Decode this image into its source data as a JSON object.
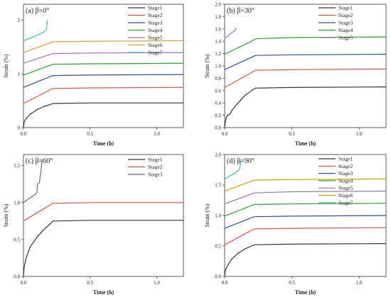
{
  "chart_data": [
    {
      "type": "line",
      "title": "(a) β=0°",
      "xlabel": "Time (h)",
      "ylabel": "Strain (%)",
      "xlim": [
        0,
        1.2
      ],
      "ylim": [
        0,
        2.3
      ],
      "xticks": [
        0,
        0.5,
        1
      ],
      "xtick_labels": [
        "0.0",
        "0.5",
        "1.0"
      ],
      "yticks": [
        0,
        1,
        2
      ],
      "ytick_labels": [
        "0",
        "1",
        "2"
      ],
      "legend_position": "top-right",
      "series": [
        {
          "name": "Stage1",
          "color": "#333333",
          "x": [
            0,
            0.005,
            0.02,
            0.05,
            0.1,
            0.15,
            0.2,
            0.22,
            0.5,
            1.2
          ],
          "y": [
            0,
            0.1,
            0.17,
            0.25,
            0.33,
            0.39,
            0.43,
            0.45,
            0.46,
            0.46
          ]
        },
        {
          "name": "Stage2",
          "color": "#e05545",
          "x": [
            0,
            0.22,
            0.5,
            1.2
          ],
          "y": [
            0.45,
            0.73,
            0.74,
            0.75
          ]
        },
        {
          "name": "Stage3",
          "color": "#2f4ea0",
          "x": [
            0,
            0.22,
            0.5,
            1.2
          ],
          "y": [
            0.75,
            0.97,
            0.98,
            0.99
          ]
        },
        {
          "name": "Stage4",
          "color": "#2aa52a",
          "x": [
            0,
            0.22,
            0.5,
            1.2
          ],
          "y": [
            0.98,
            1.18,
            1.19,
            1.2
          ]
        },
        {
          "name": "Stage5",
          "color": "#a070c0",
          "x": [
            0,
            0.22,
            0.5,
            1.2
          ],
          "y": [
            1.2,
            1.38,
            1.39,
            1.4
          ]
        },
        {
          "name": "Stage6",
          "color": "#e89a2c",
          "x": [
            0,
            0.22,
            0.5,
            1.2
          ],
          "y": [
            1.4,
            1.6,
            1.61,
            1.62
          ]
        },
        {
          "name": "Stage7",
          "color": "#3fb8b0",
          "x": [
            0,
            0.05,
            0.1,
            0.15,
            0.17,
            0.175,
            0.18
          ],
          "y": [
            1.62,
            1.67,
            1.72,
            1.78,
            1.82,
            1.9,
            2.0
          ]
        }
      ]
    },
    {
      "type": "line",
      "title": "(b) β=30°",
      "xlabel": "Time (h)",
      "ylabel": "Strain (%)",
      "xlim": [
        0,
        1.2
      ],
      "ylim": [
        0,
        2.0
      ],
      "xticks": [
        0,
        0.5,
        1
      ],
      "xtick_labels": [
        "0.0",
        "0.5",
        "1.0"
      ],
      "yticks": [
        0,
        0.2,
        0.4,
        0.6,
        0.8,
        1.0,
        1.2,
        1.4,
        1.6,
        1.8,
        2.0
      ],
      "ytick_labels": [
        "0.0",
        "0.2",
        "0.4",
        "0.6",
        "0.8",
        "1.0",
        "1.2",
        "1.4",
        "1.6",
        "1.8",
        "2.0"
      ],
      "legend_position": "top-right",
      "series": [
        {
          "name": "Stage1",
          "color": "#333333",
          "x": [
            0,
            0.005,
            0.02,
            0.04,
            0.06,
            0.1,
            0.15,
            0.2,
            0.23,
            0.5,
            1.2
          ],
          "y": [
            0,
            0.1,
            0.2,
            0.22,
            0.3,
            0.4,
            0.52,
            0.6,
            0.64,
            0.65,
            0.66
          ]
        },
        {
          "name": "Stage2",
          "color": "#e05545",
          "x": [
            0,
            0.23,
            0.5,
            1.2
          ],
          "y": [
            0.65,
            0.93,
            0.94,
            0.95
          ]
        },
        {
          "name": "Stage3",
          "color": "#2f4ea0",
          "x": [
            0,
            0.23,
            0.5,
            1.2
          ],
          "y": [
            0.94,
            1.17,
            1.18,
            1.19
          ]
        },
        {
          "name": "Stage4",
          "color": "#2aa52a",
          "x": [
            0,
            0.2,
            0.23,
            0.5,
            1.2
          ],
          "y": [
            1.19,
            1.4,
            1.44,
            1.46,
            1.47
          ]
        },
        {
          "name": "Stage5",
          "color": "#a070c0",
          "x": [
            0,
            0.03,
            0.06,
            0.08,
            0.085
          ],
          "y": [
            1.45,
            1.5,
            1.55,
            1.58,
            1.62
          ]
        }
      ]
    },
    {
      "type": "line",
      "title": "(c) β=60°",
      "xlabel": "Time (h)",
      "ylabel": "Strain (%)",
      "xlim": [
        0,
        1.2
      ],
      "ylim": [
        0,
        1.65
      ],
      "xticks": [
        0,
        0.5,
        1
      ],
      "xtick_labels": [
        "0.0",
        "0.5",
        "1.0"
      ],
      "yticks": [
        0,
        0.5,
        1.0,
        1.5
      ],
      "ytick_labels": [
        "0.0",
        "0.5",
        "1.0",
        "1.5"
      ],
      "legend_position": "top-right",
      "series": [
        {
          "name": "Stage1",
          "color": "#333333",
          "x": [
            0,
            0.005,
            0.02,
            0.05,
            0.1,
            0.15,
            0.2,
            0.22,
            0.5,
            1.2
          ],
          "y": [
            0,
            0.12,
            0.25,
            0.4,
            0.53,
            0.63,
            0.71,
            0.75,
            0.76,
            0.76
          ]
        },
        {
          "name": "Stage2",
          "color": "#e05545",
          "x": [
            0,
            0.22,
            0.5,
            1.2
          ],
          "y": [
            0.75,
            0.99,
            1.0,
            1.0
          ]
        },
        {
          "name": "Stage3",
          "color": "#6a5fb8",
          "x": [
            0,
            0.04,
            0.08,
            0.1,
            0.105,
            0.12,
            0.125,
            0.13,
            0.14
          ],
          "y": [
            1.0,
            1.05,
            1.1,
            1.13,
            1.25,
            1.27,
            1.35,
            1.4,
            1.58
          ]
        }
      ]
    },
    {
      "type": "line",
      "title": "(d) β=90°",
      "xlabel": "Time (h)",
      "ylabel": "Strain (%)",
      "xlim": [
        0,
        1.2
      ],
      "ylim": [
        0,
        2.0
      ],
      "xticks": [
        0,
        0.5,
        1
      ],
      "xtick_labels": [
        "0.0",
        "0.5",
        "1.0"
      ],
      "yticks": [
        0,
        0.5,
        1.0,
        1.5,
        2.0
      ],
      "ytick_labels": [
        "0.0",
        "0.5",
        "1.0",
        "1.5",
        "2.0"
      ],
      "legend_position": "top-right",
      "series": [
        {
          "name": "Stage1",
          "color": "#333333",
          "x": [
            0,
            0.005,
            0.02,
            0.05,
            0.1,
            0.15,
            0.2,
            0.22,
            0.5,
            1.2
          ],
          "y": [
            0,
            0.1,
            0.17,
            0.28,
            0.38,
            0.45,
            0.5,
            0.52,
            0.53,
            0.54
          ]
        },
        {
          "name": "Stage2",
          "color": "#e05545",
          "x": [
            0,
            0.22,
            0.5,
            1.2
          ],
          "y": [
            0.52,
            0.78,
            0.79,
            0.8
          ]
        },
        {
          "name": "Stage3",
          "color": "#2f4ea0",
          "x": [
            0,
            0.22,
            0.5,
            1.2
          ],
          "y": [
            0.79,
            0.98,
            0.99,
            1.0
          ]
        },
        {
          "name": "Stage4",
          "color": "#2aa52a",
          "x": [
            0,
            0.22,
            0.5,
            1.2
          ],
          "y": [
            0.99,
            1.18,
            1.19,
            1.2
          ]
        },
        {
          "name": "Stage5",
          "color": "#a070c0",
          "x": [
            0,
            0.22,
            0.5,
            1.2
          ],
          "y": [
            1.19,
            1.37,
            1.39,
            1.4
          ]
        },
        {
          "name": "Stage6",
          "color": "#c9a400",
          "x": [
            0,
            0.22,
            0.5,
            1.2
          ],
          "y": [
            1.4,
            1.58,
            1.59,
            1.6
          ]
        },
        {
          "name": "Stage7",
          "color": "#3fb8b0",
          "x": [
            0,
            0.04,
            0.08,
            0.11,
            0.115,
            0.12
          ],
          "y": [
            1.6,
            1.65,
            1.7,
            1.75,
            1.82,
            1.9
          ]
        }
      ]
    }
  ]
}
